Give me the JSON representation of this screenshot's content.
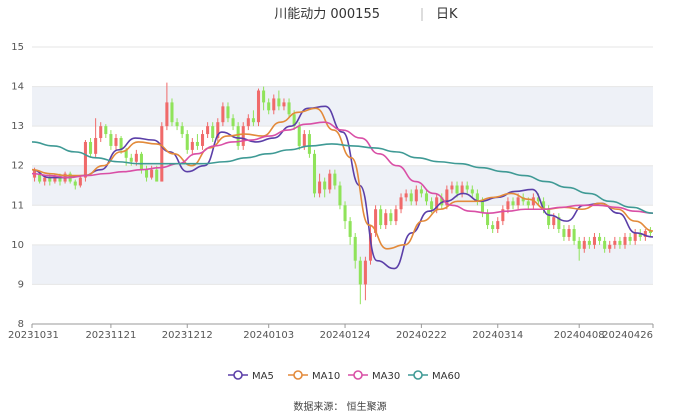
{
  "header": {
    "title": "川能动力 000155",
    "period": "日K"
  },
  "source_text": "数据来源： 恒生聚源",
  "colors": {
    "up": "#f06a6a",
    "down": "#8fe35a",
    "ma5": "#5b3fa8",
    "ma10": "#e38a3a",
    "ma30": "#d94fa6",
    "ma60": "#3f9a95",
    "band": "#eef1f7",
    "grid": "#e6e6e6"
  },
  "chart_data": {
    "type": "candlestick",
    "ylim": [
      8,
      15
    ],
    "y_ticks": [
      "15",
      "14",
      "13",
      "12",
      "11",
      "10",
      "9",
      "8"
    ],
    "x_ticks": [
      {
        "label": "20231031",
        "index": 0
      },
      {
        "label": "20231121",
        "index": 15
      },
      {
        "label": "20231212",
        "index": 30
      },
      {
        "label": "20240103",
        "index": 46
      },
      {
        "label": "20240124",
        "index": 61
      },
      {
        "label": "20240222",
        "index": 76
      },
      {
        "label": "20240314",
        "index": 91
      },
      {
        "label": "20240408",
        "index": 107
      },
      {
        "label": "20240426",
        "index": 121
      }
    ],
    "legend": [
      "MA5",
      "MA10",
      "MA30",
      "MA60"
    ],
    "candles": [
      [
        11.7,
        11.9,
        11.6,
        11.95
      ],
      [
        11.8,
        11.6,
        11.55,
        11.85
      ],
      [
        11.6,
        11.7,
        11.5,
        11.75
      ],
      [
        11.7,
        11.6,
        11.5,
        11.8
      ],
      [
        11.6,
        11.75,
        11.55,
        11.8
      ],
      [
        11.75,
        11.6,
        11.5,
        11.8
      ],
      [
        11.6,
        11.8,
        11.55,
        11.85
      ],
      [
        11.8,
        11.6,
        11.55,
        11.85
      ],
      [
        11.6,
        11.5,
        11.4,
        11.65
      ],
      [
        11.5,
        11.7,
        11.45,
        11.75
      ],
      [
        11.7,
        12.6,
        11.6,
        12.65
      ],
      [
        12.6,
        12.3,
        12.2,
        12.7
      ],
      [
        12.3,
        12.7,
        12.2,
        13.2
      ],
      [
        12.7,
        13.0,
        12.6,
        13.1
      ],
      [
        13.0,
        12.8,
        12.7,
        13.05
      ],
      [
        12.8,
        12.5,
        12.4,
        12.9
      ],
      [
        12.5,
        12.7,
        12.4,
        12.8
      ],
      [
        12.7,
        12.4,
        12.3,
        12.75
      ],
      [
        12.4,
        12.2,
        12.0,
        12.45
      ],
      [
        12.2,
        12.1,
        12.0,
        12.3
      ],
      [
        12.1,
        12.3,
        12.0,
        12.4
      ],
      [
        12.3,
        11.9,
        11.8,
        12.35
      ],
      [
        11.9,
        11.7,
        11.6,
        12.0
      ],
      [
        11.7,
        11.9,
        11.65,
        12.0
      ],
      [
        11.9,
        11.6,
        11.6,
        12.0
      ],
      [
        11.6,
        13.0,
        11.6,
        13.1
      ],
      [
        13.0,
        13.6,
        12.9,
        14.1
      ],
      [
        13.6,
        13.1,
        13.0,
        13.7
      ],
      [
        13.1,
        13.0,
        12.9,
        13.2
      ],
      [
        13.0,
        12.8,
        12.7,
        13.1
      ],
      [
        12.8,
        12.4,
        12.3,
        12.9
      ],
      [
        12.4,
        12.6,
        12.3,
        12.7
      ],
      [
        12.6,
        12.5,
        12.4,
        12.8
      ],
      [
        12.5,
        12.8,
        12.4,
        12.9
      ],
      [
        12.8,
        13.0,
        12.7,
        13.1
      ],
      [
        13.0,
        12.7,
        12.6,
        13.1
      ],
      [
        12.7,
        13.1,
        12.6,
        13.2
      ],
      [
        13.1,
        13.5,
        13.0,
        13.6
      ],
      [
        13.5,
        13.2,
        13.1,
        13.6
      ],
      [
        13.2,
        13.0,
        12.9,
        13.3
      ],
      [
        13.0,
        12.5,
        12.4,
        13.1
      ],
      [
        12.5,
        13.0,
        12.4,
        13.1
      ],
      [
        13.0,
        13.2,
        12.9,
        13.3
      ],
      [
        13.2,
        13.1,
        13.0,
        13.4
      ],
      [
        13.1,
        13.9,
        13.0,
        13.95
      ],
      [
        13.9,
        13.6,
        13.4,
        14.0
      ],
      [
        13.6,
        13.4,
        13.3,
        13.7
      ],
      [
        13.4,
        13.7,
        13.3,
        13.8
      ],
      [
        13.7,
        13.5,
        13.4,
        13.9
      ],
      [
        13.5,
        13.6,
        13.4,
        13.7
      ],
      [
        13.6,
        13.3,
        13.2,
        13.7
      ],
      [
        13.3,
        13.0,
        12.9,
        13.4
      ],
      [
        13.0,
        12.5,
        12.4,
        13.1
      ],
      [
        12.5,
        12.8,
        12.4,
        12.9
      ],
      [
        12.8,
        12.3,
        12.2,
        12.9
      ],
      [
        12.3,
        11.3,
        11.2,
        12.4
      ],
      [
        11.3,
        11.6,
        11.2,
        11.8
      ],
      [
        11.6,
        11.4,
        11.2,
        11.7
      ],
      [
        11.4,
        11.8,
        11.3,
        11.9
      ],
      [
        11.8,
        11.5,
        11.4,
        11.9
      ],
      [
        11.5,
        11.0,
        10.9,
        11.6
      ],
      [
        11.0,
        10.6,
        10.4,
        11.1
      ],
      [
        10.6,
        10.2,
        10.0,
        10.7
      ],
      [
        10.2,
        9.6,
        9.4,
        10.3
      ],
      [
        9.6,
        9.0,
        8.5,
        9.7
      ],
      [
        9.0,
        9.6,
        8.6,
        9.7
      ],
      [
        9.6,
        10.3,
        9.5,
        10.5
      ],
      [
        10.3,
        10.9,
        10.2,
        11.0
      ],
      [
        10.9,
        10.5,
        10.4,
        11.0
      ],
      [
        10.5,
        10.8,
        10.4,
        10.9
      ],
      [
        10.8,
        10.6,
        10.5,
        10.9
      ],
      [
        10.6,
        10.9,
        10.5,
        11.0
      ],
      [
        10.9,
        11.2,
        10.8,
        11.3
      ],
      [
        11.2,
        11.3,
        11.1,
        11.4
      ],
      [
        11.3,
        11.1,
        11.0,
        11.4
      ],
      [
        11.1,
        11.4,
        11.0,
        11.5
      ],
      [
        11.4,
        11.3,
        11.2,
        11.5
      ],
      [
        11.3,
        11.1,
        11.0,
        11.4
      ],
      [
        11.1,
        10.9,
        10.8,
        11.2
      ],
      [
        10.9,
        11.2,
        10.8,
        11.3
      ],
      [
        11.2,
        11.0,
        10.9,
        11.3
      ],
      [
        11.0,
        11.4,
        10.9,
        11.5
      ],
      [
        11.4,
        11.5,
        11.3,
        11.6
      ],
      [
        11.5,
        11.3,
        11.2,
        11.6
      ],
      [
        11.3,
        11.5,
        11.2,
        11.6
      ],
      [
        11.5,
        11.4,
        11.3,
        11.6
      ],
      [
        11.4,
        11.3,
        11.2,
        11.5
      ],
      [
        11.3,
        11.1,
        11.0,
        11.4
      ],
      [
        11.1,
        10.8,
        10.7,
        11.2
      ],
      [
        10.8,
        10.5,
        10.4,
        10.9
      ],
      [
        10.5,
        10.4,
        10.3,
        10.6
      ],
      [
        10.4,
        10.6,
        10.3,
        10.7
      ],
      [
        10.6,
        10.9,
        10.5,
        11.0
      ],
      [
        10.9,
        11.1,
        10.8,
        11.2
      ],
      [
        11.1,
        11.0,
        10.9,
        11.2
      ],
      [
        11.0,
        11.2,
        10.9,
        11.3
      ],
      [
        11.2,
        11.1,
        11.0,
        11.3
      ],
      [
        11.1,
        11.0,
        10.9,
        11.2
      ],
      [
        11.0,
        11.2,
        10.9,
        11.3
      ],
      [
        11.2,
        11.1,
        11.0,
        11.3
      ],
      [
        11.1,
        10.9,
        10.8,
        11.2
      ],
      [
        10.9,
        10.5,
        10.4,
        11.0
      ],
      [
        10.5,
        10.7,
        10.4,
        10.8
      ],
      [
        10.7,
        10.4,
        10.3,
        10.8
      ],
      [
        10.4,
        10.2,
        10.1,
        10.5
      ],
      [
        10.2,
        10.4,
        10.1,
        10.5
      ],
      [
        10.4,
        10.1,
        10.0,
        10.5
      ],
      [
        10.1,
        9.9,
        9.6,
        10.2
      ],
      [
        9.9,
        10.1,
        9.8,
        10.2
      ],
      [
        10.1,
        10.0,
        9.9,
        10.2
      ],
      [
        10.0,
        10.2,
        9.9,
        10.3
      ],
      [
        10.2,
        10.1,
        10.0,
        10.3
      ],
      [
        10.1,
        9.9,
        9.8,
        10.2
      ],
      [
        9.9,
        10.0,
        9.8,
        10.1
      ],
      [
        10.0,
        10.1,
        9.9,
        10.2
      ],
      [
        10.1,
        10.0,
        9.9,
        10.2
      ],
      [
        10.0,
        10.2,
        9.9,
        10.3
      ],
      [
        10.2,
        10.1,
        10.0,
        10.3
      ],
      [
        10.1,
        10.3,
        10.0,
        10.4
      ],
      [
        10.3,
        10.2,
        10.1,
        10.4
      ],
      [
        10.2,
        10.35,
        10.1,
        10.4
      ],
      [
        10.35,
        10.3,
        10.2,
        10.45
      ]
    ],
    "ma_series": [
      {
        "name": "MA5",
        "values": [
          11.9,
          11.7,
          11.7,
          11.75,
          11.9,
          12.4,
          12.7,
          12.65,
          12.35,
          11.85,
          12.0,
          12.85,
          12.7,
          12.6,
          12.7,
          13.0,
          13.45,
          13.5,
          12.85,
          11.5,
          9.6,
          9.4,
          10.3,
          10.85,
          11.1,
          11.3,
          11.1,
          11.2,
          11.35,
          11.4,
          10.75,
          10.6,
          11.0,
          11.05,
          10.8,
          10.3,
          10.2
        ]
      },
      {
        "name": "MA10",
        "values": [
          11.9,
          11.8,
          11.75,
          11.75,
          12.0,
          12.35,
          12.6,
          12.55,
          12.3,
          12.0,
          12.45,
          12.75,
          12.8,
          12.75,
          13.1,
          13.35,
          13.45,
          12.9,
          12.2,
          10.5,
          9.9,
          10.0,
          10.6,
          10.9,
          11.1,
          11.1,
          11.2,
          11.3,
          11.15,
          10.9,
          10.95,
          10.9,
          11.05,
          10.9,
          10.6,
          10.35
        ]
      },
      {
        "name": "MA30",
        "values": [
          11.8,
          11.75,
          11.7,
          11.75,
          11.8,
          11.85,
          11.9,
          11.95,
          12.05,
          12.3,
          12.5,
          12.6,
          12.65,
          12.75,
          12.9,
          13.05,
          13.1,
          12.9,
          12.7,
          12.3,
          12.0,
          11.6,
          11.3,
          11.0,
          10.85,
          10.8,
          10.85,
          10.9,
          10.9,
          10.95,
          11.0,
          11.0,
          10.95,
          10.85,
          10.8
        ]
      },
      {
        "name": "MA60",
        "values": [
          12.6,
          12.5,
          12.35,
          12.2,
          12.1,
          12.05,
          12.05,
          12.05,
          12.05,
          12.1,
          12.2,
          12.3,
          12.4,
          12.5,
          12.55,
          12.5,
          12.45,
          12.35,
          12.2,
          12.1,
          12.05,
          11.95,
          11.85,
          11.75,
          11.6,
          11.45,
          11.3,
          11.1,
          10.95,
          10.8
        ]
      }
    ]
  }
}
